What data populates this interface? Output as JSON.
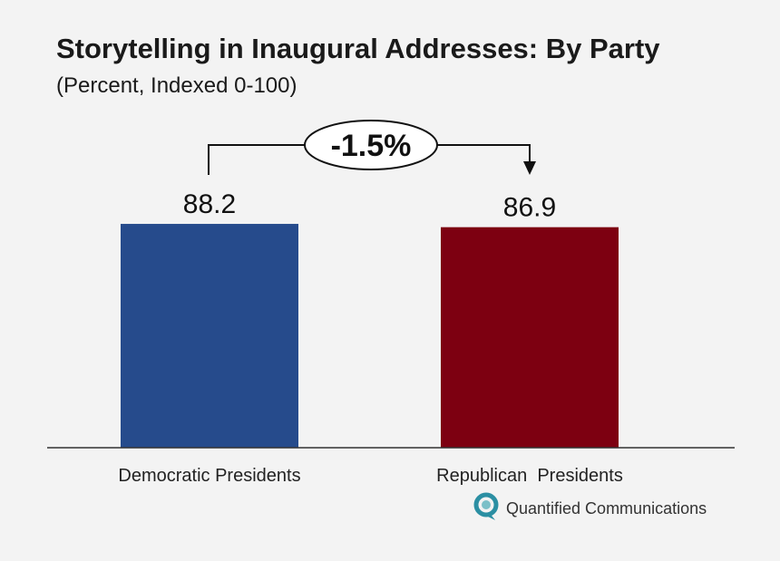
{
  "chart_data": {
    "type": "bar",
    "title": "Storytelling in Inaugural Addresses: By Party",
    "subtitle": "(Percent, Indexed 0-100)",
    "categories": [
      "Democratic Presidents",
      "Republican  Presidents"
    ],
    "values": [
      88.2,
      86.9
    ],
    "value_labels": [
      "88.2",
      "86.9"
    ],
    "colors": [
      "#264b8c",
      "#7d0011"
    ],
    "difference_label": "-1.5%",
    "xlabel": "",
    "ylabel": "",
    "grid": false
  },
  "brand": {
    "name": "Quantified Communications",
    "logo_icon": "q-speech-bubble-icon",
    "logo_colors": [
      "#2b8fa3",
      "#7cc0c8"
    ]
  }
}
